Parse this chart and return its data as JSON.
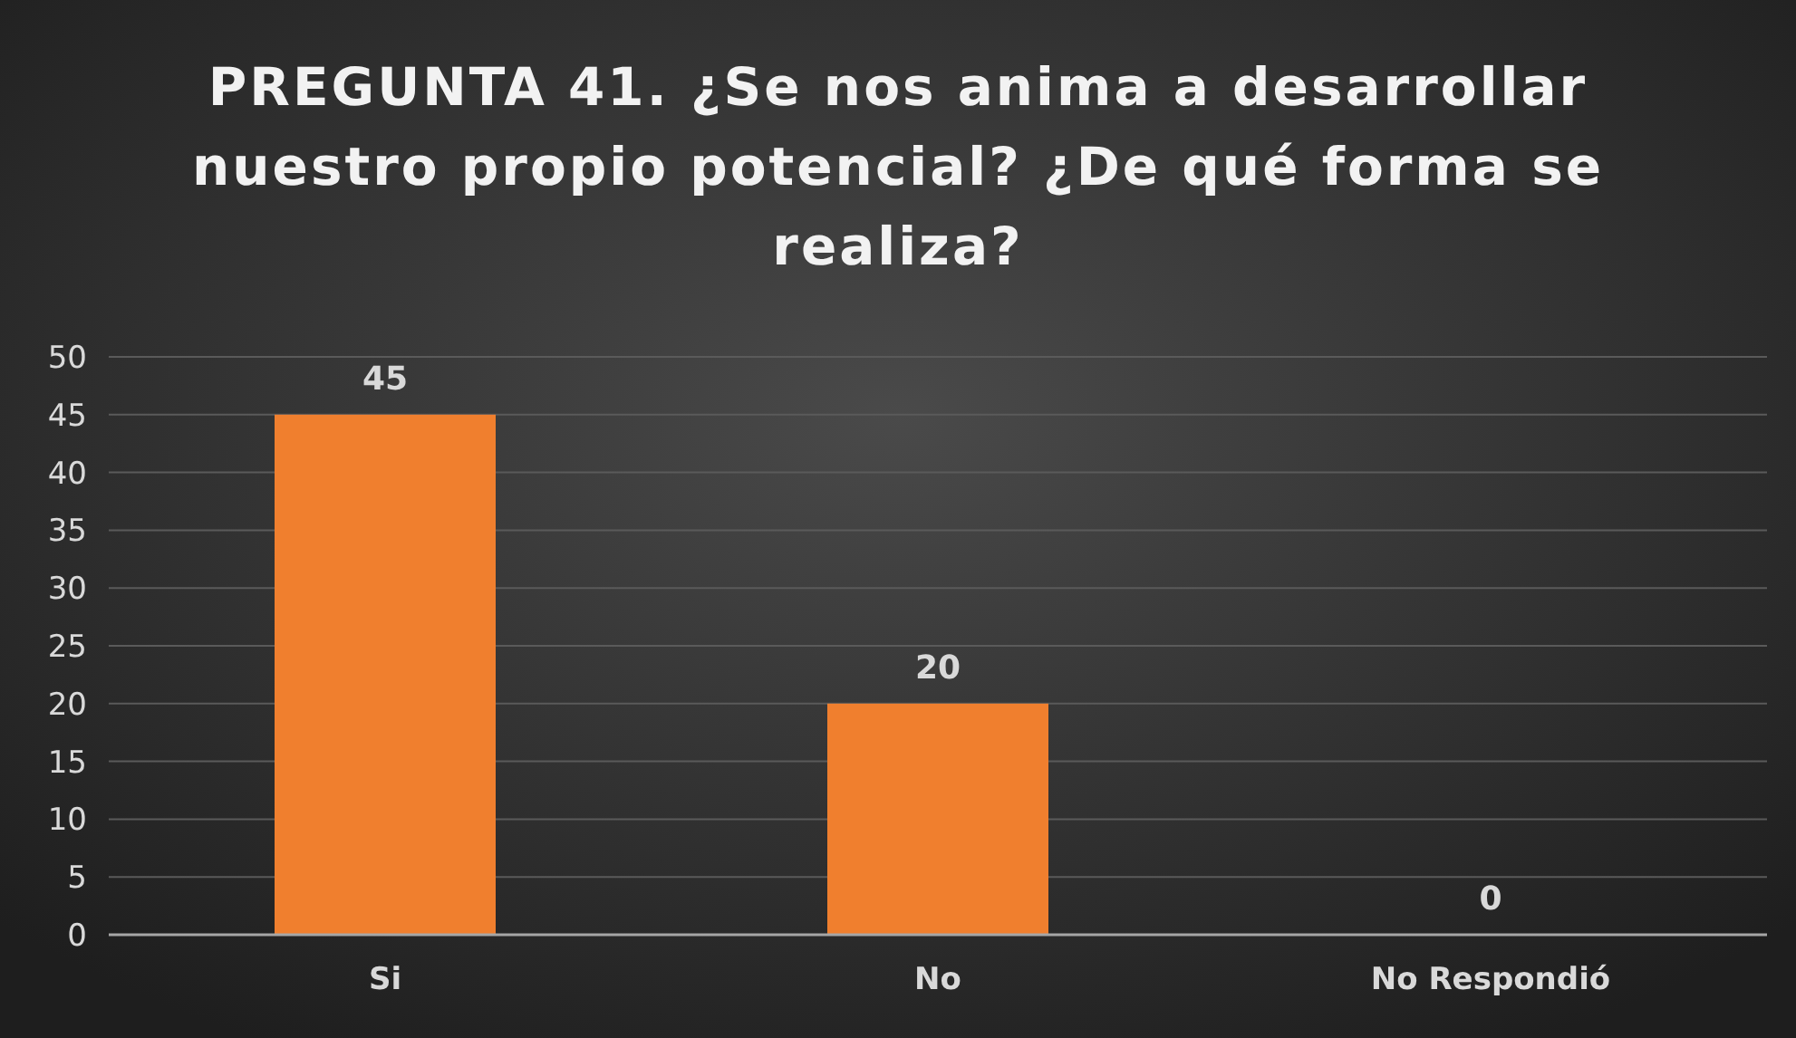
{
  "chart_data": {
    "type": "bar",
    "title": "PREGUNTA 41. ¿Se nos anima a desarrollar nuestro propio potencial? ¿De qué forma se realiza?",
    "categories": [
      "Si",
      "No",
      "No Respondió"
    ],
    "values": [
      45,
      20,
      0
    ],
    "color": "#f07f2e",
    "ylim": [
      0,
      50
    ],
    "yticks": [
      0,
      5,
      10,
      15,
      20,
      25,
      30,
      35,
      40,
      45,
      50
    ],
    "grid": "y",
    "data_labels": true
  }
}
